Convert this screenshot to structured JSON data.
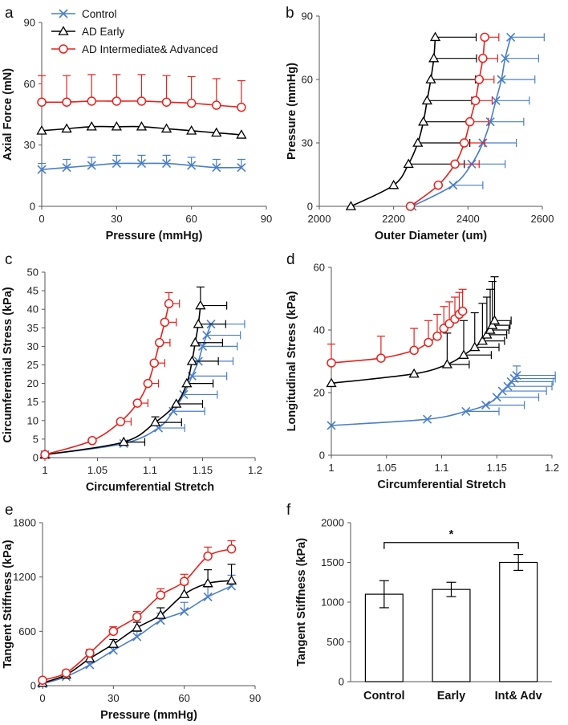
{
  "colors": {
    "control": "#4a7ec9",
    "early": "#000000",
    "adv": "#e8201c",
    "axis": "#555555"
  },
  "legend": [
    {
      "name": "Control",
      "color": "#4a7ec9",
      "marker": "x"
    },
    {
      "name": "AD Early",
      "color": "#000000",
      "marker": "triangle"
    },
    {
      "name": "AD Intermediate& Advanced",
      "color": "#e8201c",
      "marker": "circle"
    }
  ],
  "chart_data": [
    {
      "id": "a",
      "panel": "a",
      "type": "line",
      "xlabel": "Pressure (mmHg)",
      "ylabel": "Axial Force (mN)",
      "xlim": [
        0,
        90
      ],
      "ylim": [
        0,
        90
      ],
      "xticks": [
        0,
        30,
        60,
        90
      ],
      "yticks": [
        0,
        30,
        60,
        90
      ],
      "series": [
        {
          "name": "Control",
          "marker": "x",
          "color": "#4a7ec9",
          "x": [
            0,
            10,
            20,
            30,
            40,
            50,
            60,
            70,
            80
          ],
          "y": [
            18,
            19,
            20,
            21,
            21,
            21,
            20,
            19,
            19
          ],
          "err_y": [
            3,
            4,
            4,
            4,
            4,
            4,
            4,
            4,
            4
          ]
        },
        {
          "name": "AD Early",
          "marker": "triangle",
          "color": "#000000",
          "x": [
            0,
            10,
            20,
            30,
            40,
            50,
            60,
            70,
            80
          ],
          "y": [
            37,
            38,
            39,
            39,
            39,
            38,
            37,
            36,
            35
          ]
        },
        {
          "name": "AD Intermediate& Advanced",
          "marker": "circle",
          "color": "#e8201c",
          "x": [
            0,
            10,
            20,
            30,
            40,
            50,
            60,
            70,
            80
          ],
          "y": [
            51,
            51,
            51.5,
            51.5,
            51.5,
            51,
            50.5,
            49.5,
            48.5
          ],
          "err_y": [
            13,
            13,
            13,
            13,
            13,
            13,
            13,
            13,
            13
          ]
        }
      ]
    },
    {
      "id": "b",
      "panel": "b",
      "type": "line",
      "xlabel": "Outer Diameter (um)",
      "ylabel": "Pressure (mmHg)",
      "xlim": [
        2000,
        2600
      ],
      "ylim": [
        0,
        90
      ],
      "xticks": [
        2000,
        2200,
        2400,
        2600
      ],
      "yticks": [
        0,
        30,
        60,
        90
      ],
      "series": [
        {
          "name": "Control",
          "marker": "x",
          "color": "#4a7ec9",
          "x": [
            2250,
            2360,
            2410,
            2440,
            2460,
            2475,
            2490,
            2500,
            2515
          ],
          "y": [
            0,
            10,
            20,
            30,
            40,
            50,
            60,
            70,
            80
          ],
          "err_x": [
            0,
            80,
            90,
            90,
            90,
            90,
            90,
            90,
            90
          ]
        },
        {
          "name": "AD Early",
          "marker": "triangle",
          "color": "#000000",
          "x": [
            2085,
            2200,
            2240,
            2265,
            2280,
            2290,
            2300,
            2308,
            2312
          ],
          "y": [
            0,
            10,
            20,
            30,
            40,
            50,
            60,
            70,
            80
          ],
          "err_x": [
            0,
            0,
            150,
            140,
            130,
            120,
            120,
            115,
            110
          ]
        },
        {
          "name": "AD Intermediate& Advanced",
          "marker": "circle",
          "color": "#e8201c",
          "x": [
            2245,
            2320,
            2365,
            2390,
            2405,
            2420,
            2430,
            2440,
            2445
          ],
          "y": [
            0,
            10,
            20,
            30,
            40,
            50,
            60,
            70,
            80
          ],
          "err_x": [
            0,
            0,
            65,
            55,
            50,
            45,
            40,
            40,
            38
          ]
        }
      ]
    },
    {
      "id": "c",
      "panel": "c",
      "type": "line",
      "xlabel": "Circumferential Stretch",
      "ylabel": "Circumferential Stress (kPa)",
      "xlim": [
        1,
        1.2
      ],
      "ylim": [
        0,
        50
      ],
      "xticks": [
        1,
        1.05,
        1.1,
        1.15,
        1.2
      ],
      "yticks": [
        0,
        5,
        10,
        15,
        20,
        25,
        30,
        35,
        40,
        45,
        50
      ],
      "series": [
        {
          "name": "Control",
          "marker": "x",
          "color": "#4a7ec9",
          "x": [
            1,
            1.075,
            1.108,
            1.122,
            1.132,
            1.14,
            1.146,
            1.15,
            1.154,
            1.158
          ],
          "y": [
            0.8,
            3.8,
            8,
            12.5,
            17,
            22,
            26,
            30,
            33,
            36
          ],
          "err_x": [
            0,
            0,
            0.025,
            0.03,
            0.032,
            0.033,
            0.033,
            0.033,
            0.032,
            0.032
          ]
        },
        {
          "name": "AD Early",
          "marker": "triangle",
          "color": "#000000",
          "x": [
            1,
            1.075,
            1.105,
            1.125,
            1.135,
            1.14,
            1.143,
            1.146,
            1.148
          ],
          "y": [
            0.8,
            4.2,
            9.5,
            14.5,
            20,
            26,
            31,
            36,
            41
          ],
          "err_x": [
            0,
            0.02,
            0.025,
            0.025,
            0.025,
            0.025,
            0.026,
            0.026,
            0.025
          ],
          "err_y": [
            0,
            0,
            1.5,
            0,
            0,
            0,
            0,
            0,
            5
          ]
        },
        {
          "name": "AD Intermediate& Advanced",
          "marker": "circle",
          "color": "#e8201c",
          "x": [
            1,
            1.045,
            1.072,
            1.088,
            1.098,
            1.104,
            1.109,
            1.114,
            1.118
          ],
          "y": [
            0.8,
            4.6,
            9.7,
            14.7,
            20,
            25.5,
            31,
            36.5,
            41.5
          ],
          "err_x": [
            0,
            0,
            0.01,
            0.01,
            0.01,
            0.01,
            0.01,
            0.011,
            0.01
          ],
          "err_y": [
            0,
            0,
            0,
            0,
            0,
            0,
            0,
            0,
            3
          ]
        }
      ]
    },
    {
      "id": "d",
      "panel": "d",
      "type": "line",
      "xlabel": "Circumferential Stretch",
      "ylabel": "Longitudinal Stress (kPa)",
      "xlim": [
        1,
        1.2
      ],
      "ylim": [
        0,
        60
      ],
      "xticks": [
        1,
        1.05,
        1.1,
        1.15,
        1.2
      ],
      "yticks": [
        0,
        20,
        40,
        60
      ],
      "series": [
        {
          "name": "Control",
          "marker": "x",
          "color": "#4a7ec9",
          "x": [
            1,
            1.087,
            1.122,
            1.14,
            1.15,
            1.155,
            1.16,
            1.163,
            1.166,
            1.168
          ],
          "y": [
            9.5,
            11.5,
            14,
            16,
            18.5,
            20.5,
            22,
            23.5,
            24.5,
            25.5
          ],
          "err_x": [
            0,
            0,
            0.03,
            0.035,
            0.038,
            0.04,
            0.04,
            0.038,
            0.037,
            0.035
          ],
          "err_y": [
            0,
            0,
            0,
            0,
            0,
            0,
            0,
            0,
            0,
            3
          ]
        },
        {
          "name": "AD Early",
          "marker": "triangle",
          "color": "#000000",
          "x": [
            1,
            1.075,
            1.105,
            1.12,
            1.13,
            1.137,
            1.141,
            1.144,
            1.146,
            1.148
          ],
          "y": [
            23,
            26,
            29,
            32,
            34.5,
            36.5,
            38.5,
            40,
            41.5,
            43
          ],
          "err_x": [
            0,
            0,
            0.02,
            0.025,
            0.022,
            0.02,
            0.018,
            0.017,
            0.016,
            0.015
          ],
          "err_y": [
            0,
            0,
            10,
            11,
            11,
            12,
            12,
            13,
            14,
            14
          ]
        },
        {
          "name": "AD Intermediate& Advanced",
          "marker": "circle",
          "color": "#e8201c",
          "x": [
            1,
            1.045,
            1.075,
            1.088,
            1.096,
            1.102,
            1.107,
            1.112,
            1.116,
            1.119
          ],
          "y": [
            29.5,
            31,
            33.5,
            36,
            38,
            40.5,
            42,
            43.5,
            45,
            46
          ],
          "err_x": [
            0,
            0,
            0,
            0,
            0,
            0,
            0,
            0,
            0,
            0
          ],
          "err_y": [
            6,
            7,
            7,
            7,
            7,
            7,
            7,
            7,
            7,
            7
          ]
        }
      ]
    },
    {
      "id": "e",
      "panel": "e",
      "type": "line",
      "xlabel": "Pressure (mmHg)",
      "ylabel": "Tangent Stiffness (kPa)",
      "xlim": [
        0,
        90
      ],
      "ylim": [
        0,
        1800
      ],
      "xticks": [
        0,
        30,
        60,
        90
      ],
      "yticks": [
        0,
        600,
        1200,
        1800
      ],
      "series": [
        {
          "name": "Control",
          "marker": "x",
          "color": "#4a7ec9",
          "x": [
            0,
            10,
            20,
            30,
            40,
            50,
            60,
            70,
            80
          ],
          "y": [
            20,
            100,
            230,
            390,
            540,
            720,
            820,
            980,
            1100
          ],
          "err_y": [
            20,
            30,
            40,
            50,
            60,
            80,
            100,
            110,
            120
          ]
        },
        {
          "name": "AD Early",
          "marker": "triangle",
          "color": "#000000",
          "x": [
            0,
            10,
            20,
            30,
            40,
            50,
            60,
            70,
            80
          ],
          "y": [
            30,
            120,
            300,
            460,
            640,
            780,
            1010,
            1130,
            1160
          ],
          "err_y": [
            20,
            30,
            40,
            50,
            60,
            80,
            110,
            150,
            180
          ]
        },
        {
          "name": "AD Intermediate& Advanced",
          "marker": "circle",
          "color": "#e8201c",
          "x": [
            0,
            10,
            20,
            30,
            40,
            50,
            60,
            70,
            80
          ],
          "y": [
            60,
            140,
            360,
            600,
            760,
            1000,
            1150,
            1430,
            1510
          ],
          "err_y": [
            20,
            30,
            40,
            50,
            60,
            70,
            80,
            100,
            90
          ]
        }
      ]
    },
    {
      "id": "f",
      "panel": "f",
      "type": "bar",
      "xlabel": "",
      "ylabel": "Tangent Stiffness (kPa)",
      "categories": [
        "Control",
        "Early",
        "Int& Adv"
      ],
      "values": [
        1100,
        1160,
        1500
      ],
      "errors": [
        170,
        90,
        100
      ],
      "ylim": [
        0,
        2000
      ],
      "yticks": [
        0,
        500,
        1000,
        1500,
        2000
      ],
      "significance": {
        "from": 0,
        "to": 2,
        "label": "*"
      }
    }
  ]
}
